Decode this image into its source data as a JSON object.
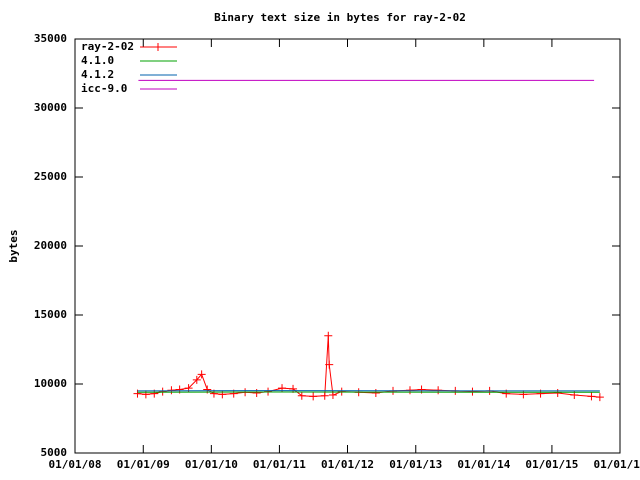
{
  "chart_data": {
    "type": "line",
    "title": "Binary text size in bytes for ray-2-02",
    "y_label": "bytes",
    "xlim": [
      "2008-01-01",
      "2016-01-01"
    ],
    "xticks": [
      {
        "value": "2008-01-01",
        "label": "01/01/08"
      },
      {
        "value": "2009-01-01",
        "label": "01/01/09"
      },
      {
        "value": "2010-01-01",
        "label": "01/01/10"
      },
      {
        "value": "2011-01-01",
        "label": "01/01/11"
      },
      {
        "value": "2012-01-01",
        "label": "01/01/12"
      },
      {
        "value": "2013-01-01",
        "label": "01/01/13"
      },
      {
        "value": "2014-01-01",
        "label": "01/01/14"
      },
      {
        "value": "2015-01-01",
        "label": "01/01/15"
      },
      {
        "value": "2016-01-01",
        "label": "01/01/16"
      }
    ],
    "ylim": [
      5000,
      35000
    ],
    "yticks": [
      5000,
      10000,
      15000,
      20000,
      25000,
      30000,
      35000
    ],
    "legend": "top-left",
    "series": [
      {
        "name": "ray-2-02",
        "color": "#ff0000",
        "marker": "plus",
        "x": [
          "2008-12-01",
          "2009-01-15",
          "2009-03-01",
          "2009-04-15",
          "2009-06-01",
          "2009-07-15",
          "2009-09-01",
          "2009-10-15",
          "2009-11-10",
          "2009-12-10",
          "2010-01-15",
          "2010-03-01",
          "2010-05-01",
          "2010-07-01",
          "2010-09-01",
          "2010-11-01",
          "2011-01-15",
          "2011-03-15",
          "2011-05-01",
          "2011-07-01",
          "2011-09-01",
          "2011-09-20",
          "2011-09-25",
          "2011-10-15",
          "2011-12-01",
          "2012-03-01",
          "2012-06-01",
          "2012-09-01",
          "2012-12-01",
          "2013-02-01",
          "2013-05-01",
          "2013-08-01",
          "2013-11-01",
          "2014-02-01",
          "2014-05-01",
          "2014-08-01",
          "2014-11-01",
          "2015-02-01",
          "2015-05-01",
          "2015-08-01",
          "2015-09-15"
        ],
        "values": [
          9300,
          9250,
          9300,
          9450,
          9550,
          9600,
          9700,
          10300,
          10700,
          9600,
          9300,
          9250,
          9300,
          9400,
          9350,
          9450,
          9700,
          9650,
          9150,
          9100,
          9150,
          13500,
          11400,
          9200,
          9450,
          9400,
          9350,
          9500,
          9550,
          9600,
          9550,
          9500,
          9450,
          9500,
          9300,
          9250,
          9300,
          9350,
          9200,
          9100,
          9050
        ]
      },
      {
        "name": "4.1.0",
        "color": "#00a000",
        "marker": "none",
        "x": [
          "2008-12-01",
          "2011-01-01",
          "2015-09-15"
        ],
        "values": [
          9400,
          9420,
          9400
        ]
      },
      {
        "name": "4.1.2",
        "color": "#0060ad",
        "marker": "none",
        "x": [
          "2008-12-01",
          "2011-01-01",
          "2015-09-15"
        ],
        "values": [
          9500,
          9520,
          9500
        ]
      },
      {
        "name": "icc-9.0",
        "color": "#c000c0",
        "marker": "none",
        "x": [
          "2008-12-06",
          "2015-08-15"
        ],
        "values": [
          32000,
          32000
        ]
      }
    ]
  }
}
